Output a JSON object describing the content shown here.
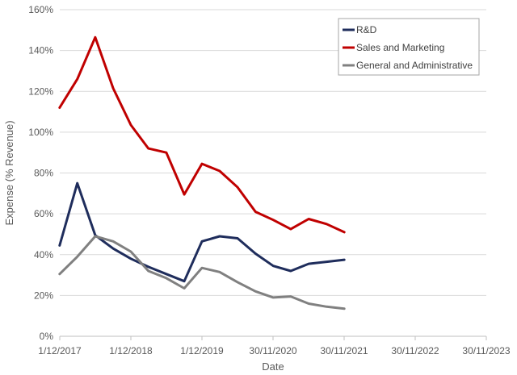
{
  "chart_data": {
    "type": "line",
    "xlabel": "Date",
    "ylabel": "Expense (% Revenue)",
    "x_ticks": [
      "1/12/2017",
      "1/12/2018",
      "1/12/2019",
      "30/11/2020",
      "30/11/2021",
      "30/11/2022",
      "30/11/2023"
    ],
    "y_ticks": [
      "0%",
      "20%",
      "40%",
      "60%",
      "80%",
      "100%",
      "120%",
      "140%",
      "160%"
    ],
    "ylim": [
      0,
      160
    ],
    "grid": "horizontal",
    "legend": "top-right",
    "x": [
      "2017-11-30",
      "2018-03-01",
      "2018-06-01",
      "2018-09-01",
      "2018-12-01",
      "2019-03-01",
      "2019-06-01",
      "2019-09-01",
      "2019-12-01",
      "2020-03-01",
      "2020-06-01",
      "2020-09-01",
      "2020-12-01",
      "2021-03-01",
      "2021-06-01",
      "2021-09-01",
      "2021-12-01",
      "2022-03-01",
      "2022-06-01",
      "2022-09-01"
    ],
    "series": [
      {
        "name": "R&D",
        "color": "#1f2d5c",
        "values": [
          44.5,
          75,
          49.5,
          43,
          38,
          34,
          30.5,
          27,
          46.5,
          49,
          48,
          40.5,
          34.5,
          32,
          35.5,
          36.5,
          37.5,
          null,
          null,
          null
        ]
      },
      {
        "name": "Sales and Marketing",
        "color": "#c00000",
        "values": [
          112,
          126,
          146.5,
          121.5,
          103.5,
          92,
          90,
          69.5,
          84.5,
          81,
          73,
          61,
          57,
          52.5,
          57.5,
          55,
          51,
          null,
          null,
          null
        ]
      },
      {
        "name": "General and Administrative",
        "color": "#808080",
        "values": [
          30.5,
          39,
          49,
          46.5,
          41.5,
          32,
          28.5,
          23.5,
          33.5,
          31.5,
          26.5,
          22,
          19,
          19.5,
          16,
          14.5,
          13.5,
          null,
          null,
          null
        ]
      }
    ]
  }
}
